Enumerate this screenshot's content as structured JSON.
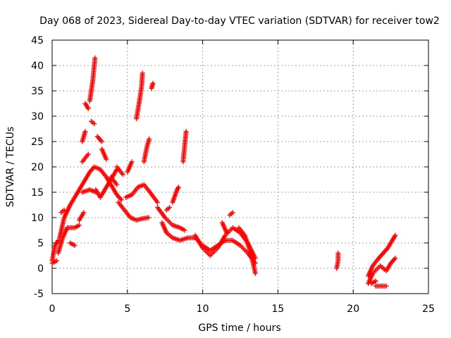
{
  "chart_data": {
    "type": "scatter",
    "title": "Day 068 of 2023, Sidereal Day-to-day VTEC variation (SDTVAR) for receiver tow2",
    "xlabel": "GPS time / hours",
    "ylabel": "SDTVAR / TECUs",
    "xlim": [
      0,
      25
    ],
    "ylim": [
      -5,
      45
    ],
    "xticks": [
      0,
      5,
      10,
      15,
      20,
      25
    ],
    "yticks": [
      -5,
      0,
      5,
      10,
      15,
      20,
      25,
      30,
      35,
      40,
      45
    ],
    "grid": true,
    "legend": "none",
    "marker": "+",
    "series_color": "#ff0000",
    "tracks": [
      [
        [
          0.0,
          1.5
        ],
        [
          0.2,
          4.5
        ],
        [
          0.4,
          5.5
        ]
      ],
      [
        [
          0.0,
          1.0
        ],
        [
          0.3,
          1.5
        ]
      ],
      [
        [
          0.4,
          3.0
        ],
        [
          0.7,
          6.0
        ],
        [
          1.0,
          8.0
        ],
        [
          1.5,
          8.0
        ],
        [
          1.8,
          8.5
        ]
      ],
      [
        [
          0.5,
          6.0
        ],
        [
          0.8,
          10.0
        ],
        [
          1.2,
          12.5
        ],
        [
          1.5,
          14.0
        ],
        [
          2.0,
          16.5
        ],
        [
          2.5,
          19.0
        ],
        [
          2.8,
          20.0
        ],
        [
          3.2,
          19.5
        ],
        [
          3.6,
          18.0
        ],
        [
          4.0,
          16.0
        ],
        [
          4.3,
          14.5
        ],
        [
          4.6,
          13.5
        ]
      ],
      [
        [
          0.6,
          11.0
        ],
        [
          0.8,
          11.5
        ]
      ],
      [
        [
          1.2,
          5.0
        ],
        [
          1.5,
          4.5
        ]
      ],
      [
        [
          1.8,
          9.5
        ],
        [
          2.1,
          11.0
        ]
      ],
      [
        [
          2.0,
          15.0
        ],
        [
          2.5,
          15.5
        ],
        [
          2.9,
          15.0
        ]
      ],
      [
        [
          2.0,
          25.0
        ],
        [
          2.2,
          27.0
        ]
      ],
      [
        [
          2.2,
          32.5
        ],
        [
          2.4,
          31.5
        ]
      ],
      [
        [
          2.5,
          33.0
        ],
        [
          2.7,
          37.0
        ],
        [
          2.8,
          40.0
        ],
        [
          2.85,
          41.5
        ]
      ],
      [
        [
          2.6,
          29.0
        ],
        [
          2.8,
          28.5
        ]
      ],
      [
        [
          2.0,
          21.0
        ],
        [
          2.4,
          22.5
        ]
      ],
      [
        [
          3.0,
          26.0
        ],
        [
          3.3,
          25.0
        ]
      ],
      [
        [
          3.3,
          23.5
        ],
        [
          3.6,
          21.5
        ]
      ],
      [
        [
          2.9,
          15.5
        ],
        [
          3.2,
          14.0
        ],
        [
          3.5,
          15.5
        ],
        [
          4.0,
          18.0
        ],
        [
          4.3,
          19.5
        ]
      ],
      [
        [
          3.9,
          18.0
        ],
        [
          4.3,
          16.5
        ]
      ],
      [
        [
          4.4,
          13.0
        ],
        [
          4.8,
          11.5
        ],
        [
          5.2,
          10.0
        ],
        [
          5.6,
          9.5
        ],
        [
          6.0,
          9.8
        ],
        [
          6.4,
          10.0
        ]
      ],
      [
        [
          4.3,
          20.0
        ],
        [
          4.7,
          18.5
        ]
      ],
      [
        [
          4.9,
          14.0
        ],
        [
          5.3,
          14.5
        ],
        [
          5.7,
          16.0
        ],
        [
          6.1,
          16.5
        ],
        [
          6.5,
          15.0
        ],
        [
          7.0,
          13.0
        ]
      ],
      [
        [
          5.0,
          19.0
        ],
        [
          5.3,
          21.0
        ]
      ],
      [
        [
          5.6,
          29.5
        ],
        [
          5.8,
          33.0
        ],
        [
          5.95,
          36.0
        ],
        [
          6.0,
          38.5
        ]
      ],
      [
        [
          6.1,
          21.0
        ],
        [
          6.3,
          24.0
        ],
        [
          6.45,
          25.5
        ]
      ],
      [
        [
          6.6,
          35.5
        ],
        [
          6.7,
          36.5
        ]
      ],
      [
        [
          7.0,
          12.0
        ],
        [
          7.5,
          10.0
        ],
        [
          8.0,
          8.5
        ],
        [
          8.5,
          8.0
        ],
        [
          8.8,
          7.5
        ]
      ],
      [
        [
          7.3,
          9.0
        ],
        [
          7.6,
          7.0
        ],
        [
          8.0,
          6.0
        ],
        [
          8.5,
          5.5
        ],
        [
          9.0,
          6.0
        ],
        [
          9.5,
          6.0
        ],
        [
          10.0,
          4.5
        ],
        [
          10.5,
          3.5
        ],
        [
          11.0,
          4.5
        ],
        [
          11.5,
          5.5
        ],
        [
          12.0,
          5.5
        ],
        [
          12.5,
          4.5
        ],
        [
          13.0,
          3.0
        ],
        [
          13.5,
          1.0
        ]
      ],
      [
        [
          7.6,
          11.5
        ],
        [
          7.8,
          12.0
        ]
      ],
      [
        [
          8.0,
          13.0
        ],
        [
          8.3,
          15.5
        ],
        [
          8.4,
          16.0
        ]
      ],
      [
        [
          8.7,
          21.0
        ],
        [
          8.8,
          24.0
        ],
        [
          8.9,
          27.0
        ]
      ],
      [
        [
          9.5,
          6.5
        ],
        [
          10.0,
          4.0
        ],
        [
          10.5,
          2.5
        ],
        [
          11.0,
          4.0
        ],
        [
          11.5,
          6.5
        ],
        [
          12.0,
          8.0
        ],
        [
          12.5,
          7.0
        ],
        [
          13.0,
          5.0
        ],
        [
          13.5,
          2.0
        ]
      ],
      [
        [
          11.3,
          9.0
        ],
        [
          11.6,
          7.0
        ]
      ],
      [
        [
          11.8,
          10.5
        ],
        [
          12.0,
          11.0
        ]
      ],
      [
        [
          12.4,
          8.0
        ],
        [
          12.8,
          6.5
        ],
        [
          13.2,
          3.0
        ],
        [
          13.5,
          -1.0
        ]
      ],
      [
        [
          18.9,
          0.0
        ],
        [
          19.0,
          1.5
        ],
        [
          19.0,
          3.0
        ]
      ],
      [
        [
          21.0,
          -3.0
        ],
        [
          21.3,
          -1.0
        ],
        [
          21.8,
          0.5
        ],
        [
          22.2,
          -0.5
        ],
        [
          22.5,
          1.0
        ],
        [
          22.8,
          2.0
        ]
      ],
      [
        [
          21.0,
          -1.5
        ],
        [
          21.3,
          0.5
        ],
        [
          21.7,
          2.0
        ],
        [
          22.0,
          3.0
        ],
        [
          22.3,
          4.0
        ],
        [
          22.6,
          5.5
        ],
        [
          22.8,
          6.5
        ]
      ],
      [
        [
          21.5,
          -3.5
        ],
        [
          22.0,
          -3.5
        ],
        [
          22.2,
          -3.5
        ]
      ],
      [
        [
          21.2,
          -3.0
        ],
        [
          21.5,
          -2.5
        ]
      ]
    ]
  }
}
